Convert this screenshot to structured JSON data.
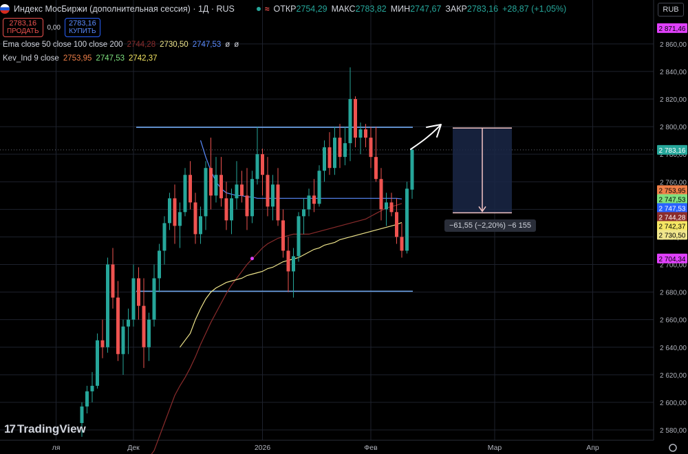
{
  "header": {
    "title": "Индекс МосБиржи (дополнительная сессия) · 1Д · RUS",
    "ohlc": [
      {
        "label": "ОТКР",
        "value": "2754,29"
      },
      {
        "label": "МАКС",
        "value": "2783,82"
      },
      {
        "label": "МИН",
        "value": "2747,67"
      },
      {
        "label": "ЗАКР",
        "value": "2783,16"
      }
    ],
    "change": "+28,87 (+1,05%)",
    "currency": "RUB"
  },
  "trade": {
    "sell_price": "2783,16",
    "sell_label": "ПРОДАТЬ",
    "spread": "0,00",
    "buy_price": "2783,16",
    "buy_label": "КУПИТЬ"
  },
  "indicators": [
    {
      "name": "Ema close 50 close 100 close 200",
      "values": [
        {
          "v": "2744,28",
          "color": "#8b2c2c"
        },
        {
          "v": "2730,50",
          "color": "#f0e68c"
        },
        {
          "v": "2747,53",
          "color": "#5b8cff"
        },
        {
          "v": "ø",
          "color": "#d1d4dc"
        },
        {
          "v": "ø",
          "color": "#d1d4dc"
        }
      ]
    },
    {
      "name": "Kev_Ind 9 close",
      "values": [
        {
          "v": "2753,95",
          "color": "#ef7f48"
        },
        {
          "v": "2747,53",
          "color": "#7ee07e"
        },
        {
          "v": "2742,37",
          "color": "#f5e663"
        }
      ]
    }
  ],
  "brand": "TradingView",
  "chart_data": {
    "type": "candlestick",
    "ylim": [
      2575,
      2885
    ],
    "y_ticks": [
      "2 580,00",
      "2 600,00",
      "2 620,00",
      "2 640,00",
      "2 660,00",
      "2 680,00",
      "2 700,00",
      "2 720,00",
      "2 740,00",
      "2 760,00",
      "2 780,00",
      "2 800,00",
      "2 820,00",
      "2 840,00",
      "2 860,00"
    ],
    "y_tick_values": [
      2580,
      2600,
      2620,
      2640,
      2660,
      2680,
      2700,
      2720,
      2740,
      2760,
      2780,
      2800,
      2820,
      2840,
      2860
    ],
    "x_labels": [
      {
        "label": "ля",
        "index": -3
      },
      {
        "label": "Дек",
        "index": 12
      },
      {
        "label": "2026",
        "index": 37
      },
      {
        "label": "Фев",
        "index": 58
      },
      {
        "label": "Мар",
        "index": 82
      },
      {
        "label": "Апр",
        "index": 101
      }
    ],
    "ohlc": [
      [
        2585,
        2600,
        2575,
        2597
      ],
      [
        2597,
        2612,
        2592,
        2608
      ],
      [
        2608,
        2622,
        2600,
        2612
      ],
      [
        2612,
        2650,
        2610,
        2645
      ],
      [
        2645,
        2660,
        2632,
        2640
      ],
      [
        2640,
        2705,
        2636,
        2700
      ],
      [
        2700,
        2712,
        2668,
        2676
      ],
      [
        2676,
        2688,
        2630,
        2635
      ],
      [
        2635,
        2660,
        2620,
        2655
      ],
      [
        2655,
        2668,
        2635,
        2660
      ],
      [
        2660,
        2700,
        2655,
        2690
      ],
      [
        2690,
        2698,
        2660,
        2670
      ],
      [
        2670,
        2690,
        2625,
        2640
      ],
      [
        2640,
        2665,
        2630,
        2660
      ],
      [
        2660,
        2700,
        2655,
        2690
      ],
      [
        2690,
        2715,
        2680,
        2710
      ],
      [
        2710,
        2735,
        2700,
        2730
      ],
      [
        2730,
        2752,
        2725,
        2748
      ],
      [
        2748,
        2758,
        2715,
        2728
      ],
      [
        2728,
        2745,
        2712,
        2738
      ],
      [
        2738,
        2770,
        2735,
        2765
      ],
      [
        2765,
        2775,
        2740,
        2745
      ],
      [
        2745,
        2752,
        2715,
        2722
      ],
      [
        2722,
        2742,
        2715,
        2735
      ],
      [
        2735,
        2775,
        2725,
        2770
      ],
      [
        2770,
        2792,
        2740,
        2750
      ],
      [
        2750,
        2778,
        2745,
        2765
      ],
      [
        2765,
        2778,
        2742,
        2748
      ],
      [
        2748,
        2760,
        2725,
        2732
      ],
      [
        2732,
        2755,
        2722,
        2748
      ],
      [
        2748,
        2775,
        2740,
        2758
      ],
      [
        2758,
        2768,
        2745,
        2750
      ],
      [
        2750,
        2770,
        2725,
        2735
      ],
      [
        2735,
        2768,
        2730,
        2762
      ],
      [
        2762,
        2800,
        2758,
        2780
      ],
      [
        2780,
        2784,
        2750,
        2765
      ],
      [
        2765,
        2778,
        2735,
        2742
      ],
      [
        2742,
        2765,
        2732,
        2758
      ],
      [
        2758,
        2770,
        2728,
        2732
      ],
      [
        2732,
        2740,
        2705,
        2710
      ],
      [
        2710,
        2720,
        2680,
        2695
      ],
      [
        2695,
        2712,
        2676,
        2706
      ],
      [
        2706,
        2738,
        2702,
        2735
      ],
      [
        2735,
        2748,
        2722,
        2740
      ],
      [
        2740,
        2755,
        2735,
        2750
      ],
      [
        2750,
        2762,
        2738,
        2744
      ],
      [
        2744,
        2772,
        2742,
        2768
      ],
      [
        2768,
        2790,
        2760,
        2785
      ],
      [
        2785,
        2796,
        2765,
        2770
      ],
      [
        2770,
        2800,
        2765,
        2792
      ],
      [
        2792,
        2802,
        2770,
        2778
      ],
      [
        2778,
        2800,
        2772,
        2788
      ],
      [
        2788,
        2843,
        2775,
        2820
      ],
      [
        2820,
        2822,
        2785,
        2792
      ],
      [
        2792,
        2803,
        2780,
        2798
      ],
      [
        2798,
        2802,
        2785,
        2792
      ],
      [
        2792,
        2800,
        2770,
        2778
      ],
      [
        2778,
        2800,
        2760,
        2762
      ],
      [
        2762,
        2770,
        2732,
        2740
      ],
      [
        2740,
        2752,
        2728,
        2745
      ],
      [
        2745,
        2752,
        2735,
        2738
      ],
      [
        2738,
        2748,
        2715,
        2720
      ],
      [
        2720,
        2730,
        2705,
        2710
      ],
      [
        2710,
        2760,
        2708,
        2755
      ],
      [
        2754.29,
        2783.82,
        2747.67,
        2783.16
      ]
    ],
    "bar_start_index": 2,
    "series": [
      {
        "name": "Ema close 50",
        "color": "#8b2c2c",
        "values": [
          2560,
          2565,
          2575,
          2585,
          2595,
          2605,
          2612,
          2618,
          2625,
          2633,
          2642,
          2650,
          2658,
          2665,
          2672,
          2679,
          2685,
          2690,
          2695,
          2700,
          2704,
          2708,
          2712,
          2715,
          2717,
          2719,
          2720,
          2721,
          2722,
          2722,
          2722,
          2722,
          2723,
          2724,
          2725,
          2726,
          2727,
          2728,
          2729,
          2730,
          2731,
          2732,
          2733,
          2735,
          2737,
          2739,
          2741,
          2742,
          2743,
          2744.28
        ]
      },
      {
        "name": "Ema close 100",
        "color": "#f0e68c",
        "values": [
          2640,
          2645,
          2650,
          2660,
          2668,
          2675,
          2680,
          2683,
          2685,
          2687,
          2688,
          2689,
          2690,
          2692,
          2693,
          2694,
          2695,
          2697,
          2698,
          2700,
          2702,
          2703,
          2704,
          2705,
          2707,
          2709,
          2711,
          2712,
          2714,
          2715,
          2716,
          2718,
          2719,
          2720,
          2721,
          2722,
          2723,
          2724,
          2725,
          2726,
          2727,
          2728,
          2729,
          2730.5
        ]
      },
      {
        "name": "Ema close 200",
        "color": "#5b8cff",
        "values": [
          2790,
          2778,
          2768,
          2760,
          2755,
          2752,
          2751,
          2750,
          2750,
          2749,
          2749,
          2748,
          2748,
          2748,
          2748,
          2748,
          2748,
          2748,
          2748,
          2748,
          2748,
          2748,
          2748,
          2748,
          2748,
          2748,
          2748,
          2748,
          2748,
          2748,
          2748,
          2748,
          2748,
          2748,
          2748,
          2748,
          2748,
          2748,
          2748,
          2747.53
        ]
      }
    ],
    "levels": [
      2799.5,
      2680.6
    ],
    "measure": {
      "from": 2799,
      "to": 2737.5,
      "label": "−61,55 (−2,20%) −6 155"
    },
    "price_tags": [
      {
        "label": "2 871,46",
        "value": 2871.46,
        "bg": "#e040fb",
        "fg": "#000000"
      },
      {
        "label": "2 783,16",
        "value": 2783.16,
        "bg": "#26a69a",
        "fg": "#ffffff"
      },
      {
        "label": "2 753,95",
        "value": 2753.95,
        "bg": "#ef7f48",
        "fg": "#000000"
      },
      {
        "label": "2 747,53",
        "value": 2747.53,
        "bg": "#7ee07e",
        "fg": "#000000"
      },
      {
        "label": "2 747,53",
        "value": 2747.53,
        "bg": "#2962ff",
        "fg": "#ffffff"
      },
      {
        "label": "2 744,28",
        "value": 2744.28,
        "bg": "#8b2c2c",
        "fg": "#ffffff"
      },
      {
        "label": "2 742,37",
        "value": 2742.37,
        "bg": "#f5e663",
        "fg": "#000000"
      },
      {
        "label": "2 730,50",
        "value": 2730.5,
        "bg": "#f0e68c",
        "fg": "#000000"
      },
      {
        "label": "2 704,34",
        "value": 2704.34,
        "bg": "#e040fb",
        "fg": "#000000"
      }
    ],
    "up_color": "#26a69a",
    "down_color": "#ef5350"
  }
}
